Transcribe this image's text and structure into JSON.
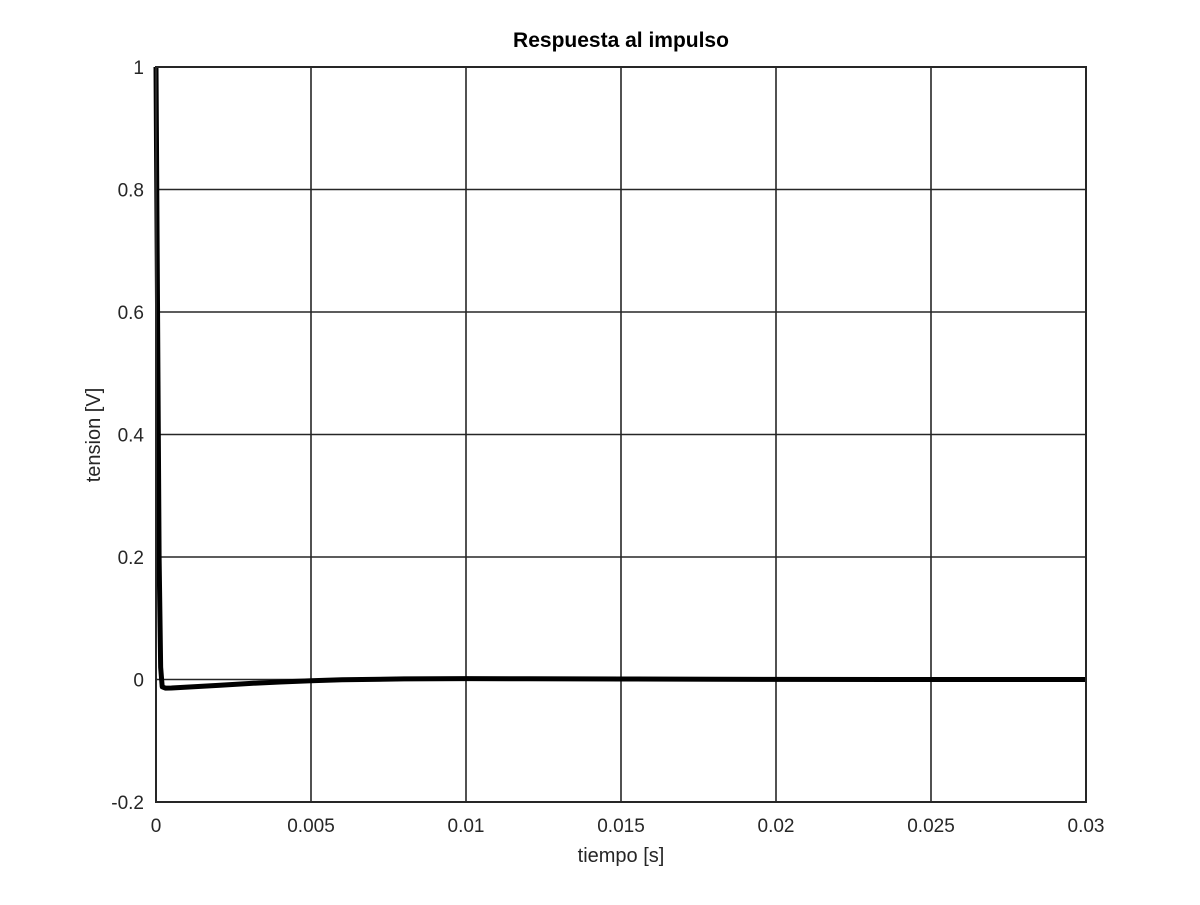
{
  "chart_data": {
    "type": "line",
    "title": "Respuesta al impulso",
    "xlabel": "tiempo [s]",
    "ylabel": "tension [V]",
    "xlim": [
      0,
      0.03
    ],
    "ylim": [
      -0.2,
      1
    ],
    "xticks": [
      0,
      0.005,
      0.01,
      0.015,
      0.02,
      0.025,
      0.03
    ],
    "xtick_labels": [
      "0",
      "0.005",
      "0.01",
      "0.015",
      "0.02",
      "0.025",
      "0.03"
    ],
    "yticks": [
      -0.2,
      0,
      0.2,
      0.4,
      0.6,
      0.8,
      1
    ],
    "ytick_labels": [
      "-0.2",
      "0",
      "0.2",
      "0.4",
      "0.6",
      "0.8",
      "1"
    ],
    "grid": true,
    "line_color": "#000000",
    "series": [
      {
        "x": [
          0,
          5e-05,
          0.0001,
          0.00015,
          0.0002,
          0.0003,
          0.0005,
          0.001,
          0.002,
          0.003,
          0.004,
          0.005,
          0.006,
          0.008,
          0.01,
          0.012,
          0.015,
          0.018,
          0.02,
          0.025,
          0.03
        ],
        "values": [
          1,
          0.6,
          0.2,
          0.02,
          -0.012,
          -0.014,
          -0.0138,
          -0.0125,
          -0.0095,
          -0.0065,
          -0.004,
          -0.002,
          -0.0005,
          0.001,
          0.0015,
          0.0012,
          0.0008,
          0.0004,
          0.0002,
          0.0,
          0.0
        ]
      }
    ]
  }
}
